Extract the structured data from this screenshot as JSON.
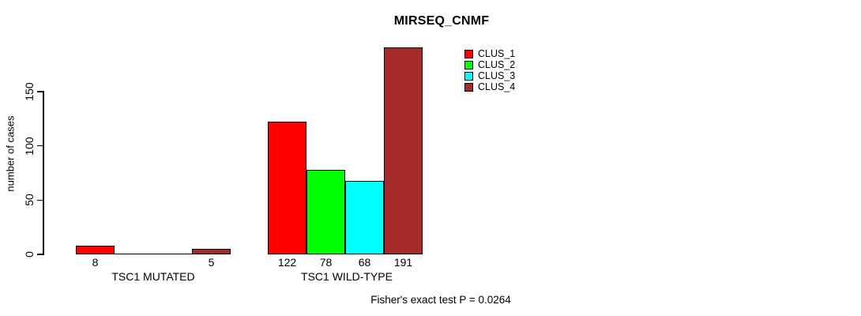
{
  "chart_data": {
    "type": "bar",
    "title": "MIRSEQ_CNMF",
    "xlabel": "",
    "ylabel": "number of cases",
    "footnote": "Fisher's exact test P = 0.0264",
    "categories": [
      "TSC1 MUTATED",
      "TSC1 WILD-TYPE"
    ],
    "series": [
      {
        "name": "CLUS_1",
        "color": "#ff0000",
        "values": [
          8,
          122
        ]
      },
      {
        "name": "CLUS_2",
        "color": "#00ff00",
        "values": [
          0,
          78
        ]
      },
      {
        "name": "CLUS_3",
        "color": "#00ffff",
        "values": [
          0,
          68
        ]
      },
      {
        "name": "CLUS_4",
        "color": "#a52a2a",
        "values": [
          5,
          191
        ]
      }
    ],
    "value_labels": [
      [
        "8",
        "",
        "",
        "5"
      ],
      [
        "122",
        "78",
        "68",
        "191"
      ]
    ],
    "yticks": [
      0,
      50,
      100,
      150
    ],
    "ylim": [
      0,
      200
    ],
    "grid": false,
    "legend_position": "top-right",
    "legend_entries": [
      "CLUS_1",
      "CLUS_2",
      "CLUS_3",
      "CLUS_4"
    ]
  },
  "colors": {
    "background": "#ffffff",
    "axis": "#000000",
    "bar_border": "#000000",
    "text": "#000000"
  }
}
